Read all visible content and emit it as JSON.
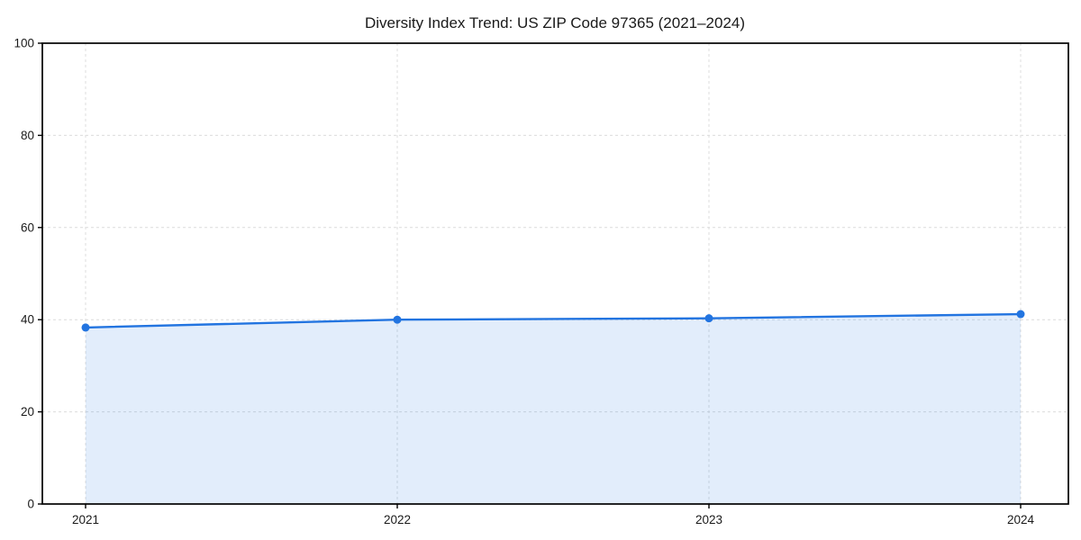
{
  "chart_data": {
    "type": "area",
    "title": "Diversity Index Trend: US ZIP Code 97365 (2021–2024)",
    "x": [
      "2021",
      "2022",
      "2023",
      "2024"
    ],
    "series": [
      {
        "name": "Diversity Index",
        "values": [
          38.3,
          40.0,
          40.3,
          41.2
        ]
      }
    ],
    "xlabel": "",
    "ylabel": "",
    "ylim": [
      0,
      100
    ],
    "yticks": [
      0,
      20,
      40,
      60,
      80,
      100
    ],
    "grid": "dashed light-gray gridlines on both axes, full black frame box",
    "legend_position": "none",
    "marker": "filled circle",
    "colors": {
      "line": "#2274e0",
      "marker": "#2274e0",
      "fill": "rgba(34,116,224,0.13)",
      "grid": "#dcdcdc",
      "frame": "#000000",
      "text": "#1a1a1a",
      "background": "#ffffff"
    }
  }
}
